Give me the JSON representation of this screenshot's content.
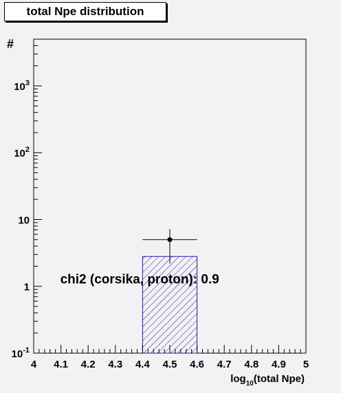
{
  "chart_data": {
    "type": "bar",
    "title": "total Npe distribution",
    "xlabel": "log10(total Npe)",
    "xlabel_parts": {
      "base": "log",
      "sub": "10",
      "rest": "(total Npe)"
    },
    "ylabel": "#",
    "xlim": [
      4,
      5
    ],
    "ylim": [
      0.1,
      5000
    ],
    "y_scale": "log",
    "x_ticks": [
      "4",
      "4.1",
      "4.2",
      "4.3",
      "4.4",
      "4.5",
      "4.6",
      "4.7",
      "4.8",
      "4.9",
      "5"
    ],
    "x_tick_values": [
      4,
      4.1,
      4.2,
      4.3,
      4.4,
      4.5,
      4.6,
      4.7,
      4.8,
      4.9,
      5
    ],
    "y_ticks": [
      {
        "value": 0.1,
        "base": "10",
        "exp": "-1"
      },
      {
        "value": 1,
        "base": "1",
        "exp": ""
      },
      {
        "value": 10,
        "base": "10",
        "exp": ""
      },
      {
        "value": 100,
        "base": "10",
        "exp": "2"
      },
      {
        "value": 1000,
        "base": "10",
        "exp": "3"
      }
    ],
    "series": [
      {
        "kind": "hist",
        "bins": [
          {
            "x0": 4.4,
            "x1": 4.6,
            "value": 2.8
          }
        ],
        "fill": "hatched",
        "color": "#1a1aa8"
      },
      {
        "kind": "points",
        "points": [
          {
            "x": 4.5,
            "y": 5,
            "xerr": 0.1,
            "y_low": 2.2,
            "y_high": 7.2
          }
        ],
        "color": "#000000"
      }
    ],
    "annotations": [
      {
        "text": "chi2 (corsika, proton): 0.9",
        "x": 4.1,
        "y": 1.1
      }
    ],
    "grid": false,
    "legend": "none"
  }
}
